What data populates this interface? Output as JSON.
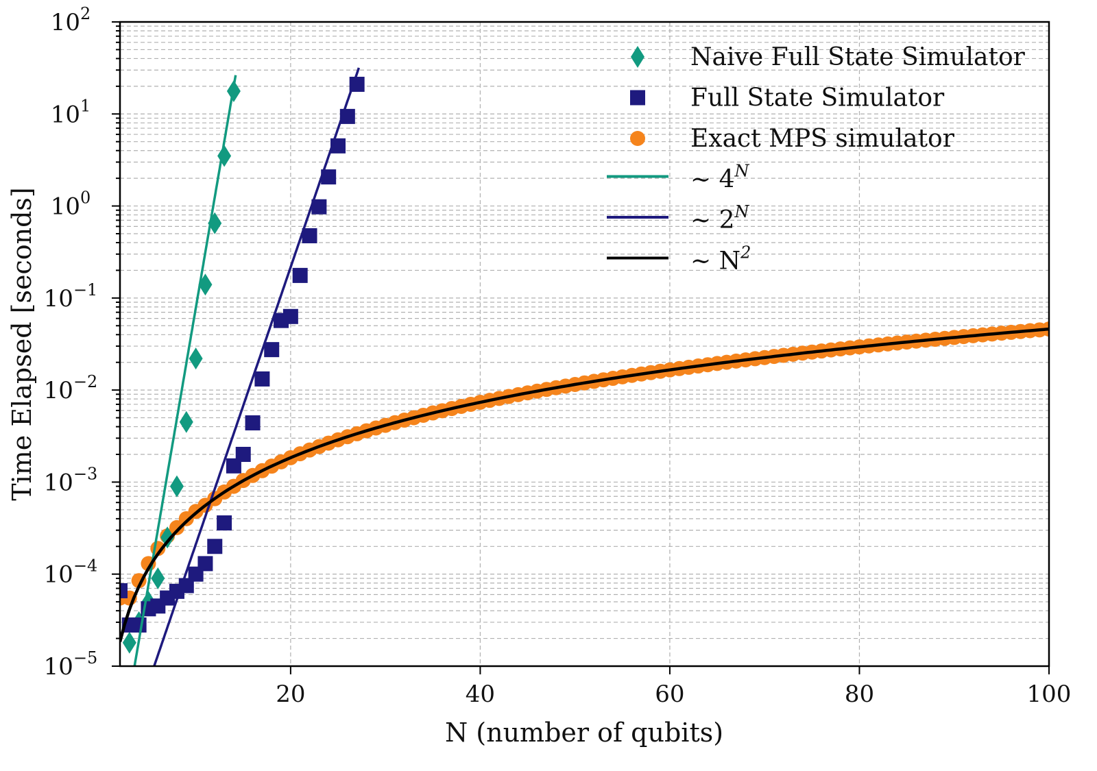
{
  "chart_data": {
    "type": "scatter",
    "title": "",
    "xlabel": "N (number of qubits)",
    "ylabel": "Time Elapsed [seconds]",
    "xlim": [
      2,
      100
    ],
    "ylim": [
      1e-05,
      100
    ],
    "yscale": "log",
    "grid": true,
    "legend_position": "top-right",
    "x_ticks": [
      20,
      40,
      60,
      80,
      100
    ],
    "y_ticks": [
      {
        "base": "10",
        "exp": "−5",
        "value": 1e-05
      },
      {
        "base": "10",
        "exp": "−4",
        "value": 0.0001
      },
      {
        "base": "10",
        "exp": "−3",
        "value": 0.001
      },
      {
        "base": "10",
        "exp": "−2",
        "value": 0.01
      },
      {
        "base": "10",
        "exp": "−1",
        "value": 0.1
      },
      {
        "base": "10",
        "exp": "0",
        "value": 1
      },
      {
        "base": "10",
        "exp": "1",
        "value": 10
      },
      {
        "base": "10",
        "exp": "2",
        "value": 100
      }
    ],
    "series": [
      {
        "name": "Naive Full State Simulator",
        "marker": "diamond",
        "color": "#129a80",
        "x": [
          3,
          4,
          5,
          6,
          7,
          8,
          9,
          10,
          11,
          12,
          13,
          14
        ],
        "y": [
          1.8e-05,
          3e-05,
          5e-05,
          9e-05,
          0.00025,
          0.0009,
          0.0045,
          0.022,
          0.14,
          0.65,
          3.5,
          17.7
        ]
      },
      {
        "name": "Full State Simulator",
        "marker": "square",
        "color": "#1e1a7e",
        "x": [
          2,
          3,
          4,
          5,
          6,
          7,
          8,
          9,
          10,
          11,
          12,
          13,
          14,
          15,
          16,
          17,
          18,
          19,
          20,
          21,
          22,
          23,
          24,
          25,
          26,
          27
        ],
        "y": [
          6.6e-05,
          2.8e-05,
          2.8e-05,
          4.2e-05,
          4.5e-05,
          5.5e-05,
          6.5e-05,
          7.5e-05,
          0.0001,
          0.00013,
          0.0002,
          0.00036,
          0.0015,
          0.002,
          0.0044,
          0.0132,
          0.0275,
          0.057,
          0.063,
          0.176,
          0.475,
          0.98,
          2.07,
          4.5,
          9.4,
          21
        ]
      },
      {
        "name": "Exact MPS simulator",
        "marker": "circle",
        "color": "#f5841c",
        "x": [
          2,
          3,
          4,
          5,
          6,
          7,
          8,
          9,
          10,
          11,
          12,
          13,
          14,
          15,
          16,
          17,
          18,
          19,
          20,
          21,
          22,
          23,
          24,
          25,
          26,
          27,
          28,
          29,
          30,
          31,
          32,
          33,
          34,
          35,
          36,
          37,
          38,
          39,
          40,
          41,
          42,
          43,
          44,
          45,
          46,
          47,
          48,
          49,
          50,
          51,
          52,
          53,
          54,
          55,
          56,
          57,
          58,
          59,
          60,
          61,
          62,
          63,
          64,
          65,
          66,
          67,
          68,
          69,
          70,
          71,
          72,
          73,
          74,
          75,
          76,
          77,
          78,
          79,
          80,
          81,
          82,
          83,
          84,
          85,
          86,
          87,
          88,
          89,
          90,
          91,
          92,
          93,
          94,
          95,
          96,
          97,
          98,
          99,
          100
        ],
        "y": [
          5.5e-05,
          5.5e-05,
          8.5e-05,
          0.00013,
          0.00019,
          0.00026,
          0.00032,
          0.0004,
          0.00048,
          0.00056,
          0.00066,
          0.00078,
          0.0009,
          0.00104,
          0.00118,
          0.00133,
          0.00149,
          0.00166,
          0.00184,
          0.00203,
          0.00223,
          0.00243,
          0.00265,
          0.00288,
          0.00311,
          0.00335,
          0.00361,
          0.00387,
          0.00414,
          0.00442,
          0.00471,
          0.00501,
          0.00532,
          0.00564,
          0.00596,
          0.0063,
          0.00664,
          0.007,
          0.00736,
          0.00773,
          0.00811,
          0.00851,
          0.00891,
          0.00932,
          0.00973,
          0.01016,
          0.0106,
          0.01104,
          0.0115,
          0.01196,
          0.01244,
          0.01292,
          0.01341,
          0.01392,
          0.01443,
          0.01495,
          0.01547,
          0.01601,
          0.01656,
          0.01712,
          0.01768,
          0.01826,
          0.01884,
          0.01944,
          0.02004,
          0.02065,
          0.02127,
          0.0219,
          0.02254,
          0.02319,
          0.02385,
          0.02451,
          0.02519,
          0.02588,
          0.02657,
          0.02727,
          0.02799,
          0.02871,
          0.02944,
          0.03018,
          0.03093,
          0.03169,
          0.03246,
          0.03324,
          0.03402,
          0.03482,
          0.03562,
          0.03644,
          0.03726,
          0.03809,
          0.03893,
          0.03979,
          0.04065,
          0.04152,
          0.04239,
          0.04328,
          0.04418,
          0.04508,
          0.046
        ]
      }
    ],
    "fits": [
      {
        "label_base": "∼ 4",
        "label_sup": "N",
        "form": "exponential",
        "base": 4,
        "coefficient": 7.45e-08,
        "n_range": [
          3,
          14.2
        ],
        "color": "#129a80"
      },
      {
        "label_base": "∼ 2",
        "label_sup": "N",
        "form": "exponential",
        "base": 2,
        "coefficient": 2.06e-07,
        "n_range": [
          5,
          27.2
        ],
        "color": "#1e1a7e"
      },
      {
        "label_base": "∼ N",
        "label_sup": "2",
        "form": "power",
        "power": 2,
        "coefficient": 4.6e-06,
        "n_range": [
          2,
          100
        ],
        "color": "#000000"
      }
    ]
  }
}
